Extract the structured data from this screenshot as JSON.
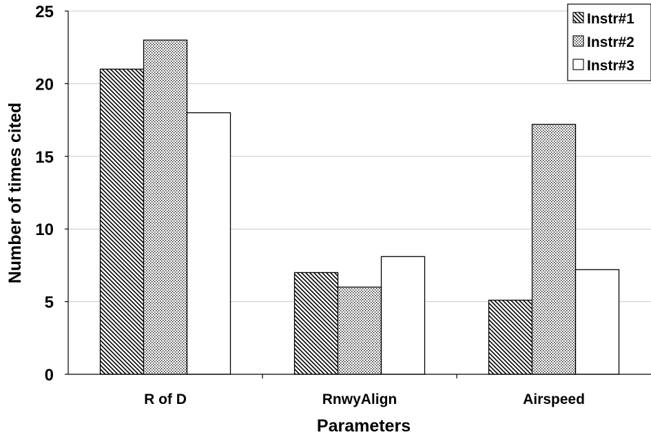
{
  "chart_data": {
    "type": "bar",
    "title": "",
    "xlabel": "Parameters",
    "ylabel": "Number of times cited",
    "categories": [
      "R of D",
      "RnwyAlign",
      "Airspeed"
    ],
    "series": [
      {
        "name": "Instr#1",
        "values": [
          21,
          7,
          5.1
        ],
        "pattern": "diagonal-hatch"
      },
      {
        "name": "Instr#2",
        "values": [
          23,
          6,
          17.2
        ],
        "pattern": "dots"
      },
      {
        "name": "Instr#3",
        "values": [
          18,
          8.1,
          7.2
        ],
        "pattern": "solid-white"
      }
    ],
    "ylim": [
      0,
      25
    ],
    "yticks": [
      0,
      5,
      10,
      15,
      20,
      25
    ],
    "grid": true,
    "legend_position": "top-right",
    "colors": {
      "bar_stroke": "#000000",
      "bar_fill": "#ffffff",
      "gridline": "#c8c8c8",
      "axis": "#000000"
    }
  }
}
